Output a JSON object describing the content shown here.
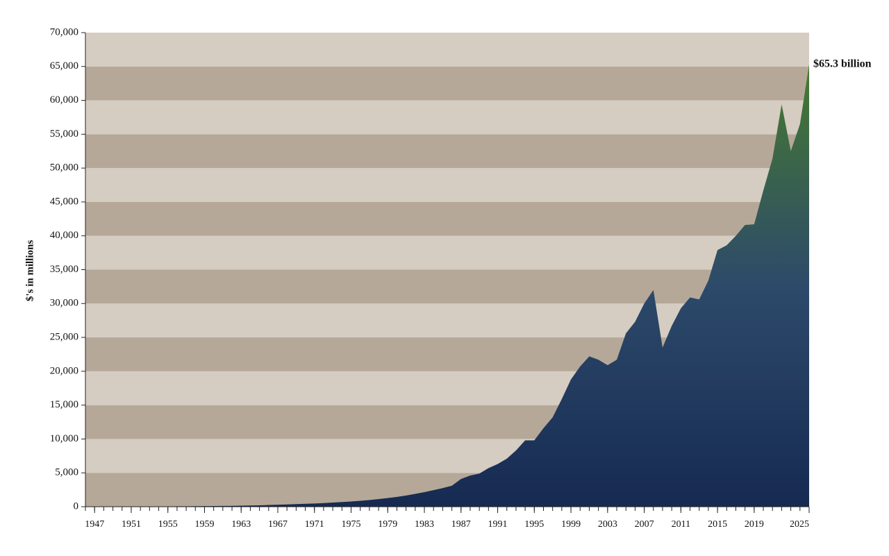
{
  "chart_data": {
    "type": "area",
    "y_label": "$'s in millions",
    "annotation": "$65.3 billion",
    "x": [
      1946,
      1947,
      1948,
      1949,
      1950,
      1951,
      1952,
      1953,
      1954,
      1955,
      1956,
      1957,
      1958,
      1959,
      1960,
      1961,
      1962,
      1963,
      1964,
      1965,
      1966,
      1967,
      1968,
      1969,
      1970,
      1971,
      1972,
      1973,
      1974,
      1975,
      1976,
      1977,
      1978,
      1979,
      1980,
      1981,
      1982,
      1983,
      1984,
      1985,
      1986,
      1987,
      1988,
      1989,
      1990,
      1991,
      1992,
      1993,
      1994,
      1995,
      1996,
      1997,
      1998,
      1999,
      2000,
      2001,
      2002,
      2003,
      2004,
      2005,
      2006,
      2007,
      2008,
      2009,
      2010,
      2011,
      2012,
      2013,
      2014,
      2015,
      2016,
      2017,
      2018,
      2019,
      2020,
      2021,
      2022,
      2023,
      2024,
      2025
    ],
    "values": [
      10,
      15,
      20,
      25,
      30,
      35,
      40,
      45,
      50,
      55,
      60,
      70,
      80,
      90,
      100,
      110,
      130,
      150,
      180,
      210,
      250,
      290,
      330,
      380,
      430,
      480,
      540,
      610,
      690,
      770,
      870,
      990,
      1130,
      1280,
      1450,
      1650,
      1900,
      2150,
      2450,
      2750,
      3100,
      4100,
      4600,
      4900,
      5700,
      6300,
      7100,
      8300,
      9800,
      9800,
      11600,
      13200,
      15900,
      18800,
      20700,
      22200,
      21700,
      20900,
      21700,
      25600,
      27300,
      30000,
      32000,
      23500,
      26700,
      29300,
      30900,
      30600,
      33400,
      37900,
      38600,
      40000,
      41600,
      41700,
      46700,
      51400,
      59400,
      52500,
      56500,
      65300
    ],
    "xlim": [
      1946,
      2025
    ],
    "xticks": [
      1947,
      1951,
      1955,
      1959,
      1963,
      1967,
      1971,
      1975,
      1979,
      1983,
      1987,
      1991,
      1995,
      1999,
      2003,
      2007,
      2011,
      2015,
      2019,
      2025
    ],
    "ylim": [
      0,
      70000
    ],
    "yticks": [
      {
        "value": 0,
        "label": "0"
      },
      {
        "value": 5000,
        "label": "5,000"
      },
      {
        "value": 10000,
        "label": "10,000"
      },
      {
        "value": 15000,
        "label": "15,000"
      },
      {
        "value": 20000,
        "label": "20,000"
      },
      {
        "value": 25000,
        "label": "25,000"
      },
      {
        "value": 30000,
        "label": "30,000"
      },
      {
        "value": 35000,
        "label": "35,000"
      },
      {
        "value": 40000,
        "label": "40,000"
      },
      {
        "value": 45000,
        "label": "45,000"
      },
      {
        "value": 50000,
        "label": "50,000"
      },
      {
        "value": 55000,
        "label": "55,000"
      },
      {
        "value": 60000,
        "label": "60,000"
      },
      {
        "value": 65000,
        "label": "65,000"
      },
      {
        "value": 70000,
        "label": "70,000"
      }
    ],
    "band_colors": [
      "#b5a898",
      "#d5ccc2"
    ],
    "gradient": [
      "#467a30",
      "#2d4a6a",
      "#162a52"
    ]
  }
}
